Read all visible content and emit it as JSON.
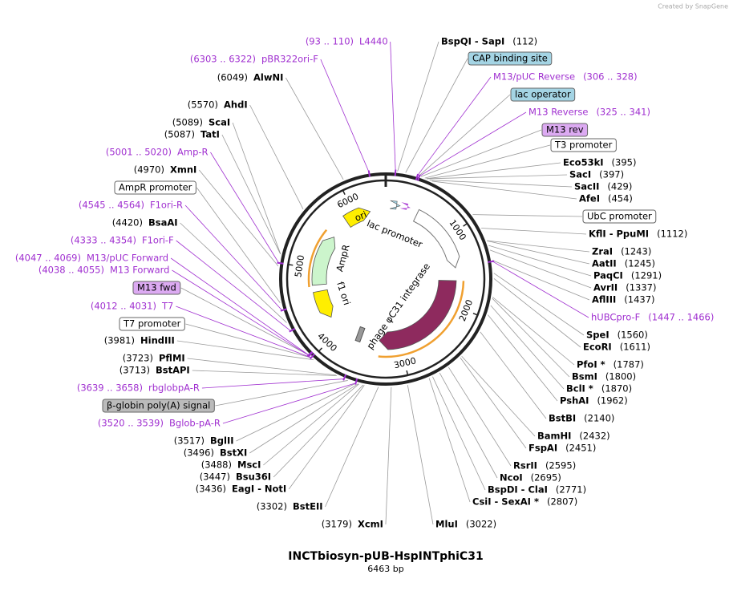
{
  "header": {
    "credit": "Created by SnapGene"
  },
  "map": {
    "title": "INCTbiosyn-pUB-HspINTphiC31",
    "length": "6463 bp",
    "ticks": [
      1000,
      2000,
      3000,
      4000,
      5000,
      6000
    ],
    "features": [
      {
        "name": "ori",
        "color": "#ffee00"
      },
      {
        "name": "lac promoter",
        "color": "#ffffff"
      },
      {
        "name": "AmpR",
        "color": "#ccf5cc"
      },
      {
        "name": "f1 ori",
        "color": "#ffee00"
      },
      {
        "name": "phage φC31 integrase",
        "color": "#8e2a5e"
      }
    ],
    "labels": [
      {
        "kind": "site",
        "name": "BspQI - SapI",
        "position": "(112)"
      },
      {
        "kind": "feature",
        "name": "CAP binding site",
        "color": "#a4d4e4"
      },
      {
        "kind": "primer",
        "name": "M13/pUC Reverse",
        "position": "(306 .. 328)"
      },
      {
        "kind": "feature",
        "name": "lac operator",
        "color": "#a4d4e4"
      },
      {
        "kind": "primer",
        "name": "M13 Reverse",
        "position": "(325 .. 341)"
      },
      {
        "kind": "feature",
        "name": "M13 rev",
        "color": "#dcaaf2"
      },
      {
        "kind": "feature",
        "name": "T3 promoter",
        "color": "#ffffff"
      },
      {
        "kind": "site",
        "name": "Eco53kI",
        "position": "(395)"
      },
      {
        "kind": "site",
        "name": "SacI",
        "position": "(397)"
      },
      {
        "kind": "site",
        "name": "SacII",
        "position": "(429)"
      },
      {
        "kind": "site",
        "name": "AfeI",
        "position": "(454)"
      },
      {
        "kind": "feature",
        "name": "UbC promoter",
        "color": "#ffffff"
      },
      {
        "kind": "site",
        "name": "KflI - PpuMI",
        "position": "(1112)"
      },
      {
        "kind": "site",
        "name": "ZraI",
        "position": "(1243)"
      },
      {
        "kind": "site",
        "name": "AatII",
        "position": "(1245)"
      },
      {
        "kind": "site",
        "name": "PaqCI",
        "position": "(1291)"
      },
      {
        "kind": "site",
        "name": "AvrII",
        "position": "(1337)"
      },
      {
        "kind": "site",
        "name": "AflIII",
        "position": "(1437)"
      },
      {
        "kind": "primer",
        "name": "hUBCpro-F",
        "position": "(1447 .. 1466)"
      },
      {
        "kind": "site",
        "name": "SpeI",
        "position": "(1560)"
      },
      {
        "kind": "site",
        "name": "EcoRI",
        "position": "(1611)"
      },
      {
        "kind": "site",
        "name": "PfoI *",
        "position": "(1787)"
      },
      {
        "kind": "site",
        "name": "BsmI",
        "position": "(1800)"
      },
      {
        "kind": "site",
        "name": "BclI *",
        "position": "(1870)"
      },
      {
        "kind": "site",
        "name": "PshAI",
        "position": "(1962)"
      },
      {
        "kind": "site",
        "name": "BstBI",
        "position": "(2140)"
      },
      {
        "kind": "site",
        "name": "BamHI",
        "position": "(2432)"
      },
      {
        "kind": "site",
        "name": "FspAI",
        "position": "(2451)"
      },
      {
        "kind": "site",
        "name": "RsrII",
        "position": "(2595)"
      },
      {
        "kind": "site",
        "name": "NcoI",
        "position": "(2695)"
      },
      {
        "kind": "site",
        "name": "BspDI - ClaI",
        "position": "(2771)"
      },
      {
        "kind": "site",
        "name": "CsiI - SexAI *",
        "position": "(2807)"
      },
      {
        "kind": "site",
        "name": "MluI",
        "position": "(3022)"
      },
      {
        "kind": "site",
        "name": "XcmI",
        "position": "(3179)"
      },
      {
        "kind": "site",
        "name": "BstEII",
        "position": "(3302)"
      },
      {
        "kind": "site",
        "name": "EagI - NotI",
        "position": "(3436)"
      },
      {
        "kind": "site",
        "name": "Bsu36I",
        "position": "(3447)"
      },
      {
        "kind": "site",
        "name": "MscI",
        "position": "(3488)"
      },
      {
        "kind": "site",
        "name": "BstXI",
        "position": "(3496)"
      },
      {
        "kind": "site",
        "name": "BglII",
        "position": "(3517)"
      },
      {
        "kind": "primer",
        "name": "Bglob-pA-R",
        "position": "(3520 .. 3539)"
      },
      {
        "kind": "feature",
        "name": "β-globin poly(A) signal",
        "color": "#bbbbbb"
      },
      {
        "kind": "primer",
        "name": "rbglobpA-R",
        "position": "(3639 .. 3658)"
      },
      {
        "kind": "site",
        "name": "BstAPI",
        "position": "(3713)"
      },
      {
        "kind": "site",
        "name": "PflMI",
        "position": "(3723)"
      },
      {
        "kind": "site",
        "name": "HindIII",
        "position": "(3981)"
      },
      {
        "kind": "feature",
        "name": "T7 promoter",
        "color": "#ffffff"
      },
      {
        "kind": "primer",
        "name": "T7",
        "position": "(4012 .. 4031)"
      },
      {
        "kind": "feature",
        "name": "M13 fwd",
        "color": "#dcaaf2"
      },
      {
        "kind": "primer",
        "name": "M13 Forward",
        "position": "(4038 .. 4055)"
      },
      {
        "kind": "primer",
        "name": "M13/pUC Forward",
        "position": "(4047 .. 4069)"
      },
      {
        "kind": "primer",
        "name": "F1ori-F",
        "position": "(4333 .. 4354)"
      },
      {
        "kind": "site",
        "name": "BsaAI",
        "position": "(4420)"
      },
      {
        "kind": "primer",
        "name": "F1ori-R",
        "position": "(4545 .. 4564)"
      },
      {
        "kind": "feature",
        "name": "AmpR promoter",
        "color": "#ffffff"
      },
      {
        "kind": "site",
        "name": "XmnI",
        "position": "(4970)"
      },
      {
        "kind": "primer",
        "name": "Amp-R",
        "position": "(5001 .. 5020)"
      },
      {
        "kind": "site",
        "name": "TatI",
        "position": "(5087)"
      },
      {
        "kind": "site",
        "name": "ScaI",
        "position": "(5089)"
      },
      {
        "kind": "site",
        "name": "AhdI",
        "position": "(5570)"
      },
      {
        "kind": "site",
        "name": "AlwNI",
        "position": "(6049)"
      },
      {
        "kind": "primer",
        "name": "pBR322ori-F",
        "position": "(6303 .. 6322)"
      },
      {
        "kind": "primer",
        "name": "L4440",
        "position": "(93 .. 110)"
      }
    ]
  }
}
